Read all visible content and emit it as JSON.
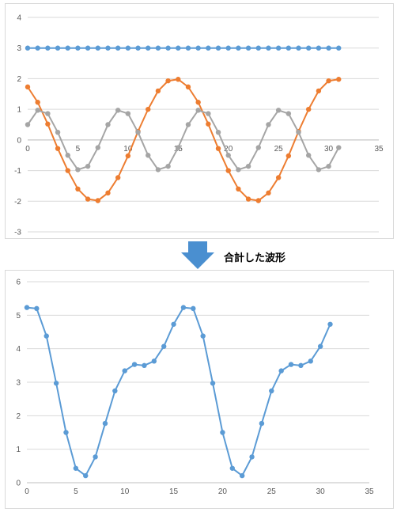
{
  "arrow": {
    "caption": "合計した波形",
    "color": "#4a8fd0"
  },
  "chart_data": [
    {
      "type": "line",
      "xlim": [
        0,
        35
      ],
      "ylim": [
        -3,
        4
      ],
      "x_ticks": [
        0,
        5,
        10,
        15,
        20,
        25,
        30,
        35
      ],
      "y_ticks": [
        -3,
        -2,
        -1,
        0,
        1,
        2,
        3,
        4
      ],
      "grid": "horizontal",
      "x": [
        0,
        1,
        2,
        3,
        4,
        5,
        6,
        7,
        8,
        9,
        10,
        11,
        12,
        13,
        14,
        15,
        16,
        17,
        18,
        19,
        20,
        21,
        22,
        23,
        24,
        25,
        26,
        27,
        28,
        29,
        30,
        31
      ],
      "series": [
        {
          "color": "#5b9bd5",
          "values": [
            3,
            3,
            3,
            3,
            3,
            3,
            3,
            3,
            3,
            3,
            3,
            3,
            3,
            3,
            3,
            3,
            3,
            3,
            3,
            3,
            3,
            3,
            3,
            3,
            3,
            3,
            3,
            3,
            3,
            3,
            3,
            3
          ]
        },
        {
          "color": "#ed7d31",
          "values": [
            1.73,
            1.23,
            0.52,
            -0.28,
            -1.0,
            -1.6,
            -1.93,
            -1.98,
            -1.73,
            -1.23,
            -0.52,
            0.28,
            1.0,
            1.6,
            1.93,
            1.98,
            1.73,
            1.23,
            0.52,
            -0.28,
            -1.0,
            -1.6,
            -1.93,
            -1.98,
            -1.73,
            -1.23,
            -0.52,
            0.28,
            1.0,
            1.6,
            1.93,
            1.98
          ]
        },
        {
          "color": "#a5a5a5",
          "values": [
            0.5,
            0.97,
            0.86,
            0.25,
            -0.5,
            -0.97,
            -0.86,
            -0.25,
            0.5,
            0.97,
            0.86,
            0.25,
            -0.5,
            -0.97,
            -0.86,
            -0.25,
            0.5,
            0.97,
            0.86,
            0.25,
            -0.5,
            -0.97,
            -0.86,
            -0.25,
            0.5,
            0.97,
            0.86,
            0.25,
            -0.5,
            -0.97,
            -0.86,
            -0.25
          ]
        }
      ]
    },
    {
      "type": "line",
      "xlim": [
        0,
        35
      ],
      "ylim": [
        0,
        6
      ],
      "x_ticks": [
        0,
        5,
        10,
        15,
        20,
        25,
        30,
        35
      ],
      "y_ticks": [
        0,
        1,
        2,
        3,
        4,
        5,
        6
      ],
      "grid": "horizontal",
      "x": [
        0,
        1,
        2,
        3,
        4,
        5,
        6,
        7,
        8,
        9,
        10,
        11,
        12,
        13,
        14,
        15,
        16,
        17,
        18,
        19,
        20,
        21,
        22,
        23,
        24,
        25,
        26,
        27,
        28,
        29,
        30,
        31
      ],
      "series": [
        {
          "color": "#5b9bd5",
          "values": [
            5.23,
            5.2,
            4.38,
            2.97,
            1.5,
            0.43,
            0.21,
            0.77,
            1.77,
            2.74,
            3.34,
            3.53,
            3.5,
            3.63,
            4.07,
            4.73,
            5.23,
            5.2,
            4.38,
            2.97,
            1.5,
            0.43,
            0.21,
            0.77,
            1.77,
            2.74,
            3.34,
            3.53,
            3.5,
            3.63,
            4.07,
            4.73
          ]
        }
      ]
    }
  ]
}
